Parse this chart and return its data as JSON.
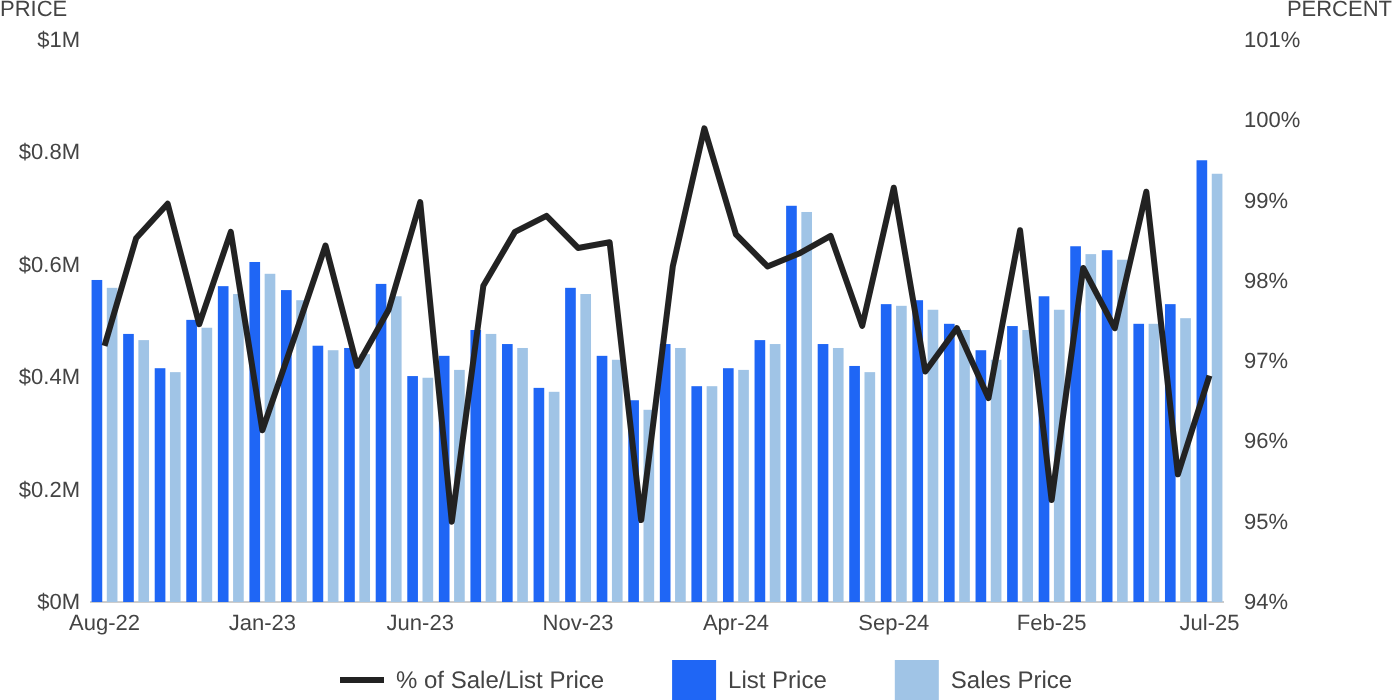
{
  "chart_data": {
    "type": "bar",
    "ylabel": "PRICE",
    "y2label": "PERCENT",
    "categories": [
      "Aug-22",
      null,
      null,
      null,
      null,
      "Jan-23",
      null,
      null,
      null,
      null,
      "Jun-23",
      null,
      null,
      null,
      null,
      "Nov-23",
      null,
      null,
      null,
      null,
      "Apr-24",
      null,
      null,
      null,
      null,
      "Sep-24",
      null,
      null,
      null,
      null,
      "Feb-25",
      null,
      null,
      null,
      null,
      "Jul-25"
    ],
    "series": [
      {
        "name": "% of Sale/List Price",
        "type": "line",
        "axis": "y2",
        "color": "#222222",
        "values": [
          97.19,
          98.53,
          98.96,
          97.46,
          98.61,
          96.14,
          97.28,
          98.44,
          96.94,
          97.64,
          98.98,
          95.0,
          97.94,
          98.61,
          98.81,
          98.41,
          98.48,
          95.02,
          98.18,
          99.9,
          98.58,
          98.18,
          98.34,
          98.56,
          97.44,
          99.16,
          96.87,
          97.41,
          96.54,
          98.63,
          95.27,
          98.16,
          97.41,
          99.11,
          95.59,
          96.82
        ]
      },
      {
        "name": "List Price",
        "color": "#1f66f5",
        "values": [
          0.573,
          0.477,
          0.416,
          0.502,
          0.562,
          0.605,
          0.555,
          0.456,
          0.452,
          0.566,
          0.402,
          0.438,
          0.484,
          0.459,
          0.381,
          0.559,
          0.438,
          0.359,
          0.459,
          0.384,
          0.416,
          0.466,
          0.705,
          0.459,
          0.42,
          0.53,
          0.537,
          0.495,
          0.448,
          0.491,
          0.544,
          0.633,
          0.626,
          0.495,
          0.53,
          0.786
        ]
      },
      {
        "name": "Sales Price",
        "color": "#a0c4e6",
        "values": [
          0.559,
          0.466,
          0.409,
          0.488,
          0.548,
          0.584,
          0.537,
          0.448,
          0.441,
          0.544,
          0.399,
          0.413,
          0.477,
          0.452,
          0.374,
          0.548,
          0.431,
          0.342,
          0.452,
          0.384,
          0.413,
          0.459,
          0.694,
          0.452,
          0.409,
          0.527,
          0.52,
          0.484,
          0.431,
          0.484,
          0.52,
          0.619,
          0.609,
          0.495,
          0.505,
          0.762
        ]
      }
    ],
    "ylim": [
      0,
      1
    ],
    "yticks": [
      {
        "value": 0,
        "label": "$0M"
      },
      {
        "value": 0.2,
        "label": "$0.2M"
      },
      {
        "value": 0.4,
        "label": "$0.4M"
      },
      {
        "value": 0.6,
        "label": "$0.6M"
      },
      {
        "value": 0.8,
        "label": "$0.8M"
      },
      {
        "value": 1,
        "label": "$1M"
      }
    ],
    "y2lim": [
      94,
      101
    ],
    "y2ticks": [
      {
        "value": 94,
        "label": "94%"
      },
      {
        "value": 95,
        "label": "95%"
      },
      {
        "value": 96,
        "label": "96%"
      },
      {
        "value": 97,
        "label": "97%"
      },
      {
        "value": 98,
        "label": "98%"
      },
      {
        "value": 99,
        "label": "99%"
      },
      {
        "value": 100,
        "label": "100%"
      },
      {
        "value": 101,
        "label": "101%"
      }
    ],
    "legend": "bottom"
  }
}
